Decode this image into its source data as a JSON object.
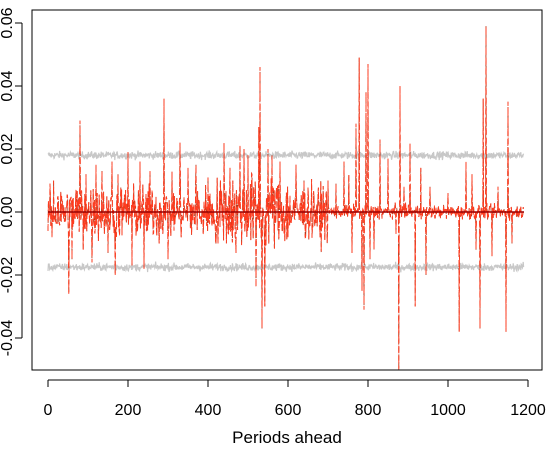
{
  "chart_data": {
    "type": "line",
    "title": "",
    "xlabel": "Periods ahead",
    "ylabel": "",
    "xlim": [
      -10,
      1200
    ],
    "ylim": [
      -0.06,
      0.06
    ],
    "x_ticks": [
      0,
      200,
      400,
      600,
      800,
      1000,
      1200
    ],
    "x_tick_labels": [
      "0",
      "200",
      "400",
      "600",
      "800",
      "1000",
      "1200"
    ],
    "y_ticks": [
      -0.04,
      -0.02,
      0.0,
      0.02,
      0.04,
      0.06
    ],
    "y_tick_labels": [
      "-0.04",
      "-0.02",
      "0.00",
      "0.02",
      "0.04",
      "0.06"
    ],
    "grid": false,
    "legend": "none",
    "colors": {
      "response": "#ff3b1f",
      "response_dark": "#b22200",
      "bands": "#c8c8c8",
      "zero_line": "#990000",
      "axes": "#000000"
    },
    "series": [
      {
        "role": "response",
        "style": "dashed",
        "n_points": 1190,
        "typical_amplitude": 0.006,
        "spikes": [
          [
            5,
            0.009
          ],
          [
            10,
            -0.008
          ],
          [
            14,
            0.01
          ],
          [
            25,
            0.005
          ],
          [
            52,
            -0.026
          ],
          [
            60,
            -0.015
          ],
          [
            70,
            0.007
          ],
          [
            80,
            0.029
          ],
          [
            88,
            -0.012
          ],
          [
            95,
            0.012
          ],
          [
            110,
            -0.016
          ],
          [
            120,
            0.015
          ],
          [
            135,
            0.013
          ],
          [
            150,
            -0.013
          ],
          [
            160,
            0.016
          ],
          [
            168,
            -0.02
          ],
          [
            175,
            0.012
          ],
          [
            200,
            0.019
          ],
          [
            210,
            -0.017
          ],
          [
            230,
            0.016
          ],
          [
            240,
            -0.018
          ],
          [
            255,
            0.013
          ],
          [
            278,
            -0.01
          ],
          [
            290,
            0.036
          ],
          [
            300,
            -0.015
          ],
          [
            310,
            0.013
          ],
          [
            330,
            0.022
          ],
          [
            350,
            0.014
          ],
          [
            370,
            0.015
          ],
          [
            388,
            -0.007
          ],
          [
            400,
            0.011
          ],
          [
            420,
            -0.01
          ],
          [
            440,
            0.022
          ],
          [
            455,
            0.014
          ],
          [
            470,
            -0.013
          ],
          [
            480,
            0.021
          ],
          [
            490,
            0.02
          ],
          [
            500,
            0.018
          ],
          [
            510,
            0.012
          ],
          [
            520,
            -0.024
          ],
          [
            527,
            0.027
          ],
          [
            530,
            0.046
          ],
          [
            535,
            -0.037
          ],
          [
            542,
            -0.03
          ],
          [
            550,
            0.02
          ],
          [
            560,
            0.018
          ],
          [
            580,
            0.016
          ],
          [
            600,
            -0.008
          ],
          [
            620,
            0.015
          ],
          [
            640,
            0.01
          ],
          [
            680,
            -0.008
          ],
          [
            700,
            0.01
          ],
          [
            720,
            0.009
          ],
          [
            740,
            0.016
          ],
          [
            752,
            0.012
          ],
          [
            760,
            -0.013
          ],
          [
            770,
            0.028
          ],
          [
            778,
            0.049
          ],
          [
            785,
            -0.025
          ],
          [
            790,
            -0.031
          ],
          [
            795,
            0.038
          ],
          [
            800,
            0.047
          ],
          [
            805,
            -0.015
          ],
          [
            815,
            -0.012
          ],
          [
            830,
            0.023
          ],
          [
            850,
            0.017
          ],
          [
            870,
            -0.007
          ],
          [
            877,
            -0.05
          ],
          [
            880,
            0.04
          ],
          [
            890,
            0.008
          ],
          [
            905,
            0.022
          ],
          [
            918,
            -0.03
          ],
          [
            932,
            0.014
          ],
          [
            945,
            -0.02
          ],
          [
            955,
            0.008
          ],
          [
            1000,
            0.006
          ],
          [
            1028,
            -0.038
          ],
          [
            1045,
            0.016
          ],
          [
            1060,
            0.012
          ],
          [
            1070,
            -0.012
          ],
          [
            1080,
            -0.037
          ],
          [
            1088,
            0.036
          ],
          [
            1095,
            0.059
          ],
          [
            1110,
            -0.014
          ],
          [
            1125,
            0.008
          ],
          [
            1145,
            -0.038
          ],
          [
            1150,
            0.035
          ],
          [
            1160,
            -0.01
          ]
        ]
      },
      {
        "role": "upper_band",
        "style": "solid",
        "level": 0.018,
        "noise": 0.0006,
        "n_points": 1190
      },
      {
        "role": "lower_band",
        "style": "solid",
        "level": -0.0175,
        "noise": 0.0006,
        "n_points": 1190
      },
      {
        "role": "zero_line",
        "style": "solid",
        "level": 0.0,
        "x_range": [
          0,
          1190
        ]
      }
    ]
  }
}
